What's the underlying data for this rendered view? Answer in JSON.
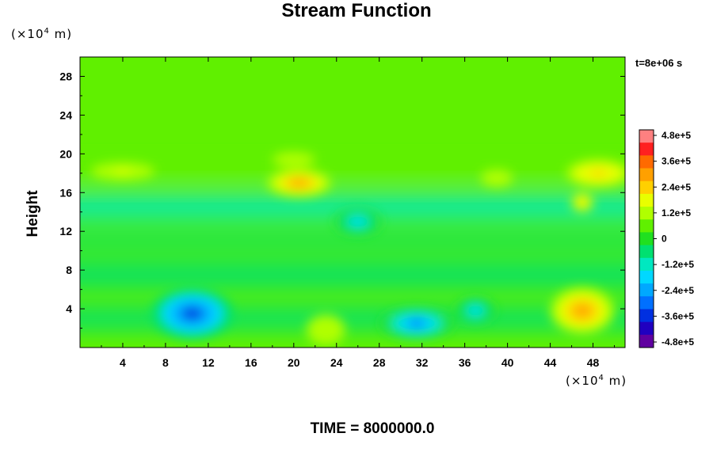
{
  "chart_data": {
    "type": "heatmap",
    "title": "Stream Function",
    "ylabel": "Height",
    "x_unit": {
      "prefix": "(×10",
      "exp": "4",
      "suffix": " m)"
    },
    "y_unit": {
      "prefix": "(×10",
      "exp": "4",
      "suffix": " m)"
    },
    "x_ticks": [
      "4",
      "8",
      "12",
      "16",
      "20",
      "24",
      "28",
      "32",
      "36",
      "40",
      "44",
      "48"
    ],
    "y_ticks": [
      "4",
      "8",
      "12",
      "16",
      "20",
      "24",
      "28"
    ],
    "xlim": [
      0,
      51
    ],
    "ylim": [
      0,
      30
    ],
    "time_stamp": "t=8e+06 s",
    "time_readout": "TIME = 8000000.0",
    "colorbar": {
      "vmin": -480000,
      "vmax": 480000,
      "tick_labels": [
        "4.8e+5",
        "3.6e+5",
        "2.4e+5",
        "1.2e+5",
        "0",
        "-1.2e+5",
        "-2.4e+5",
        "-3.6e+5",
        "-4.8e+5"
      ],
      "colors": [
        "#ff8080",
        "#ff2020",
        "#ff6a00",
        "#ffa000",
        "#ffd000",
        "#e8ff00",
        "#b0ff00",
        "#60f000",
        "#20e020",
        "#00e070",
        "#00e8c0",
        "#00d8ff",
        "#00a8ff",
        "#0070ff",
        "#0030e0",
        "#2000c0",
        "#6000a0"
      ]
    },
    "background_value": 80000,
    "features": [
      {
        "x": 10.5,
        "y": 3.5,
        "value": -380000,
        "rx": 3.8,
        "ry": 2.6
      },
      {
        "x": 31.5,
        "y": 2.5,
        "value": -280000,
        "rx": 3.4,
        "ry": 1.6
      },
      {
        "x": 37.0,
        "y": 3.8,
        "value": -180000,
        "rx": 1.8,
        "ry": 1.4
      },
      {
        "x": 26.0,
        "y": 13.0,
        "value": -200000,
        "rx": 2.2,
        "ry": 1.4
      },
      {
        "x": 20.5,
        "y": 17.0,
        "value": 280000,
        "rx": 3.0,
        "ry": 1.4
      },
      {
        "x": 47.0,
        "y": 3.8,
        "value": 300000,
        "rx": 3.0,
        "ry": 2.4
      },
      {
        "x": 48.5,
        "y": 18.0,
        "value": 230000,
        "rx": 3.0,
        "ry": 1.4
      },
      {
        "x": 47.0,
        "y": 15.0,
        "value": 250000,
        "rx": 1.0,
        "ry": 1.0
      },
      {
        "x": 4.0,
        "y": 18.2,
        "value": 170000,
        "rx": 3.0,
        "ry": 0.9
      },
      {
        "x": 23.0,
        "y": 1.8,
        "value": 140000,
        "rx": 1.8,
        "ry": 1.6
      },
      {
        "x": 20.0,
        "y": 19.4,
        "value": 150000,
        "rx": 2.0,
        "ry": 0.8
      },
      {
        "x": 39.0,
        "y": 17.5,
        "value": 150000,
        "rx": 1.5,
        "ry": 0.9
      }
    ],
    "bands": [
      {
        "y": 14.5,
        "value": -100000,
        "h": 2.3
      },
      {
        "y": 11.0,
        "value": -30000,
        "h": 1.5
      },
      {
        "y": 7.5,
        "value": -60000,
        "h": 2.5
      },
      {
        "y": 3.0,
        "value": -60000,
        "h": 2.2
      },
      {
        "y": 18.0,
        "value": 60000,
        "h": 1.5
      }
    ],
    "grid": false
  }
}
